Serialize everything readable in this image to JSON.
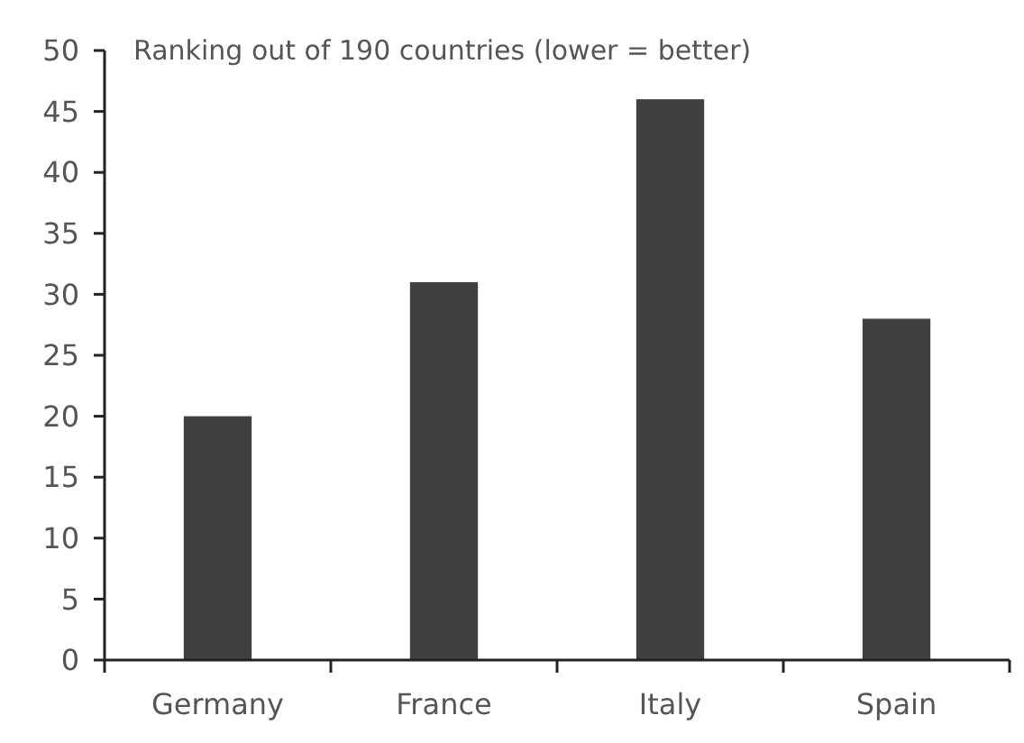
{
  "chart_data": {
    "type": "bar",
    "subtitle": "Ranking out of 190 countries (lower = better)",
    "categories": [
      "Germany",
      "France",
      "Italy",
      "Spain"
    ],
    "values": [
      20,
      31,
      46,
      28
    ],
    "color": "#404040",
    "ylim": [
      0,
      50
    ],
    "yticks": [
      0,
      5,
      10,
      15,
      20,
      25,
      30,
      35,
      40,
      45,
      50
    ],
    "grid": false
  }
}
